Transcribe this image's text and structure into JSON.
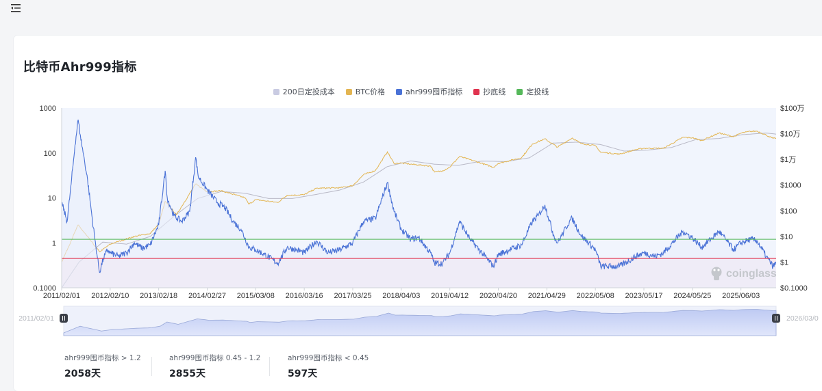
{
  "page": {
    "title": "比特币Ahr999指标",
    "watermark": "coinglass"
  },
  "legend": [
    {
      "name": "200日定投成本",
      "color": "#c9cbe2"
    },
    {
      "name": "BTC价格",
      "color": "#e3b552"
    },
    {
      "name": "ahr999囤币指标",
      "color": "#4a72d6"
    },
    {
      "name": "抄底线",
      "color": "#e0334f"
    },
    {
      "name": "定投线",
      "color": "#55b85a"
    }
  ],
  "stats": [
    {
      "label": "ahr999囤币指标 > 1.2",
      "value": "2058天"
    },
    {
      "label": "ahr999囤币指标 0.45 - 1.2",
      "value": "2855天"
    },
    {
      "label": "ahr999囤币指标 < 0.45",
      "value": "597天"
    }
  ],
  "slider": {
    "start_label": "2011/02/01",
    "end_label": "2026/03/0"
  },
  "chart_data": {
    "type": "line",
    "x_tick_labels": [
      "2011/02/01",
      "2012/02/10",
      "2013/02/18",
      "2014/02/27",
      "2015/03/08",
      "2016/03/16",
      "2017/03/25",
      "2018/04/03",
      "2019/04/12",
      "2020/04/20",
      "2021/04/29",
      "2022/05/08",
      "2023/05/17",
      "2024/05/25",
      "2025/06/03"
    ],
    "y_left": {
      "scale": "log",
      "range": [
        0.1,
        1000
      ],
      "tick_labels": [
        "1000",
        "100",
        "10",
        "1",
        "0.1000"
      ]
    },
    "y_right": {
      "scale": "log",
      "range": [
        0.1,
        1000000
      ],
      "tick_labels": [
        "$100万",
        "$10万",
        "$1万",
        "$1000",
        "$100",
        "$10",
        "$1",
        "$0.1000"
      ]
    },
    "grid": false,
    "legend_position": "top-center",
    "thresholds": [
      {
        "name": "抄底线",
        "value": 0.45,
        "color": "#e0334f"
      },
      {
        "name": "定投线",
        "value": 1.2,
        "color": "#55b85a"
      }
    ],
    "series": [
      {
        "name": "ahr999囤币指标",
        "axis": "left",
        "color": "#4a72d6",
        "points": [
          [
            "2011/02/01",
            8
          ],
          [
            "2011/03/15",
            3
          ],
          [
            "2011/04/15",
            20
          ],
          [
            "2011/05/15",
            150
          ],
          [
            "2011/06/08",
            550
          ],
          [
            "2011/06/25",
            250
          ],
          [
            "2011/07/20",
            90
          ],
          [
            "2011/08/20",
            25
          ],
          [
            "2011/09/15",
            6
          ],
          [
            "2011/10/15",
            1.2
          ],
          [
            "2011/11/20",
            0.22
          ],
          [
            "2011/12/20",
            0.45
          ],
          [
            "2012/01/20",
            0.7
          ],
          [
            "2012/02/10",
            0.6
          ],
          [
            "2012/04/15",
            0.5
          ],
          [
            "2012/06/15",
            0.6
          ],
          [
            "2012/08/15",
            1.0
          ],
          [
            "2012/10/15",
            0.75
          ],
          [
            "2012/12/15",
            0.9
          ],
          [
            "2013/02/18",
            2.5
          ],
          [
            "2013/04/09",
            40
          ],
          [
            "2013/04/25",
            10
          ],
          [
            "2013/06/15",
            4
          ],
          [
            "2013/08/15",
            3
          ],
          [
            "2013/10/15",
            5
          ],
          [
            "2013/11/30",
            80
          ],
          [
            "2013/12/20",
            30
          ],
          [
            "2014/02/27",
            15
          ],
          [
            "2014/05/15",
            8
          ],
          [
            "2014/07/15",
            6
          ],
          [
            "2014/09/15",
            3
          ],
          [
            "2014/11/15",
            2
          ],
          [
            "2015/01/15",
            0.8
          ],
          [
            "2015/03/08",
            0.7
          ],
          [
            "2015/05/15",
            0.55
          ],
          [
            "2015/08/25",
            0.35
          ],
          [
            "2015/11/05",
            0.8
          ],
          [
            "2016/01/15",
            0.7
          ],
          [
            "2016/03/16",
            0.6
          ],
          [
            "2016/06/18",
            1.1
          ],
          [
            "2016/09/15",
            0.6
          ],
          [
            "2016/12/15",
            0.7
          ],
          [
            "2017/03/25",
            1.0
          ],
          [
            "2017/06/15",
            3
          ],
          [
            "2017/09/15",
            3.5
          ],
          [
            "2017/12/17",
            22
          ],
          [
            "2018/02/06",
            5
          ],
          [
            "2018/04/03",
            2
          ],
          [
            "2018/06/15",
            1.2
          ],
          [
            "2018/08/15",
            1.3
          ],
          [
            "2018/11/15",
            0.6
          ],
          [
            "2018/12/15",
            0.35
          ],
          [
            "2019/02/15",
            0.35
          ],
          [
            "2019/04/12",
            0.6
          ],
          [
            "2019/06/26",
            3
          ],
          [
            "2019/09/15",
            1.2
          ],
          [
            "2019/12/15",
            0.6
          ],
          [
            "2020/03/13",
            0.3
          ],
          [
            "2020/04/20",
            0.55
          ],
          [
            "2020/07/15",
            0.7
          ],
          [
            "2020/10/15",
            0.9
          ],
          [
            "2021/01/08",
            3
          ],
          [
            "2021/02/21",
            4
          ],
          [
            "2021/04/14",
            7
          ],
          [
            "2021/06/20",
            1.5
          ],
          [
            "2021/07/20",
            1.0
          ],
          [
            "2021/10/20",
            3
          ],
          [
            "2021/11/10",
            3.5
          ],
          [
            "2022/01/15",
            1.5
          ],
          [
            "2022/05/08",
            0.7
          ],
          [
            "2022/06/18",
            0.3
          ],
          [
            "2022/11/10",
            0.3
          ],
          [
            "2023/03/15",
            0.5
          ],
          [
            "2023/05/17",
            0.6
          ],
          [
            "2023/08/15",
            0.5
          ],
          [
            "2023/10/15",
            0.6
          ],
          [
            "2024/03/13",
            1.8
          ],
          [
            "2024/05/25",
            1.3
          ],
          [
            "2024/08/05",
            0.8
          ],
          [
            "2024/12/17",
            1.8
          ],
          [
            "2025/04/08",
            0.7
          ],
          [
            "2025/06/03",
            1.0
          ],
          [
            "2025/08/14",
            1.2
          ],
          [
            "2025/10/06",
            1.1
          ],
          [
            "2025/12/15",
            0.5
          ],
          [
            "2026/02/05",
            0.3
          ],
          [
            "2026/03/01",
            0.35
          ]
        ]
      },
      {
        "name": "BTC价格",
        "axis": "right",
        "color": "#e3b552",
        "points": [
          [
            "2011/02/01",
            1
          ],
          [
            "2011/06/08",
            28
          ],
          [
            "2011/11/20",
            2.5
          ],
          [
            "2012/02/10",
            5
          ],
          [
            "2012/08/15",
            10
          ],
          [
            "2012/12/15",
            13
          ],
          [
            "2013/02/18",
            30
          ],
          [
            "2013/04/09",
            230
          ],
          [
            "2013/07/05",
            70
          ],
          [
            "2013/11/30",
            1100
          ],
          [
            "2014/02/27",
            550
          ],
          [
            "2014/06/15",
            600
          ],
          [
            "2014/12/15",
            320
          ],
          [
            "2015/01/14",
            180
          ],
          [
            "2015/03/08",
            270
          ],
          [
            "2015/08/25",
            210
          ],
          [
            "2015/11/05",
            400
          ],
          [
            "2016/03/16",
            420
          ],
          [
            "2016/06/18",
            750
          ],
          [
            "2016/12/15",
            780
          ],
          [
            "2017/03/25",
            950
          ],
          [
            "2017/06/15",
            2500
          ],
          [
            "2017/09/15",
            3700
          ],
          [
            "2017/12/17",
            19500
          ],
          [
            "2018/02/06",
            6900
          ],
          [
            "2018/04/03",
            7200
          ],
          [
            "2018/06/15",
            6500
          ],
          [
            "2018/11/15",
            5500
          ],
          [
            "2018/12/15",
            3200
          ],
          [
            "2019/02/15",
            3600
          ],
          [
            "2019/04/12",
            5000
          ],
          [
            "2019/06/26",
            13000
          ],
          [
            "2019/12/15",
            7000
          ],
          [
            "2020/03/13",
            4900
          ],
          [
            "2020/04/20",
            7000
          ],
          [
            "2020/10/15",
            11500
          ],
          [
            "2021/01/08",
            40000
          ],
          [
            "2021/04/14",
            63000
          ],
          [
            "2021/07/20",
            30000
          ],
          [
            "2021/11/10",
            68000
          ],
          [
            "2022/01/15",
            42000
          ],
          [
            "2022/05/08",
            34000
          ],
          [
            "2022/06/18",
            19000
          ],
          [
            "2022/11/10",
            16000
          ],
          [
            "2023/03/15",
            24000
          ],
          [
            "2023/05/17",
            27000
          ],
          [
            "2023/10/15",
            27000
          ],
          [
            "2024/03/13",
            72000
          ],
          [
            "2024/05/25",
            69000
          ],
          [
            "2024/08/05",
            54000
          ],
          [
            "2024/12/17",
            106000
          ],
          [
            "2025/04/08",
            76000
          ],
          [
            "2025/06/03",
            105000
          ],
          [
            "2025/08/14",
            123000
          ],
          [
            "2025/10/06",
            125000
          ],
          [
            "2025/12/15",
            88000
          ],
          [
            "2026/02/05",
            65000
          ],
          [
            "2026/03/01",
            68000
          ]
        ]
      },
      {
        "name": "200日定投成本",
        "axis": "right",
        "color": "#b9b9c6",
        "points": [
          [
            "2011/02/01",
            0.1
          ],
          [
            "2011/06/15",
            1
          ],
          [
            "2011/12/15",
            6
          ],
          [
            "2012/06/15",
            5
          ],
          [
            "2012/12/15",
            10
          ],
          [
            "2013/06/15",
            60
          ],
          [
            "2013/12/15",
            300
          ],
          [
            "2014/06/15",
            560
          ],
          [
            "2014/12/15",
            480
          ],
          [
            "2015/06/15",
            300
          ],
          [
            "2015/12/15",
            300
          ],
          [
            "2016/06/15",
            430
          ],
          [
            "2016/12/15",
            640
          ],
          [
            "2017/06/15",
            1300
          ],
          [
            "2017/12/15",
            5200
          ],
          [
            "2018/06/15",
            8700
          ],
          [
            "2018/12/15",
            6500
          ],
          [
            "2019/06/15",
            5800
          ],
          [
            "2019/12/15",
            8600
          ],
          [
            "2020/06/15",
            8200
          ],
          [
            "2020/12/15",
            11500
          ],
          [
            "2021/06/15",
            43000
          ],
          [
            "2021/12/15",
            47000
          ],
          [
            "2022/06/15",
            38000
          ],
          [
            "2022/12/15",
            21000
          ],
          [
            "2023/06/15",
            23000
          ],
          [
            "2023/12/15",
            29000
          ],
          [
            "2024/06/15",
            58000
          ],
          [
            "2024/12/15",
            65000
          ],
          [
            "2025/06/15",
            92000
          ],
          [
            "2025/12/15",
            106000
          ],
          [
            "2026/03/01",
            96000
          ]
        ]
      }
    ]
  }
}
